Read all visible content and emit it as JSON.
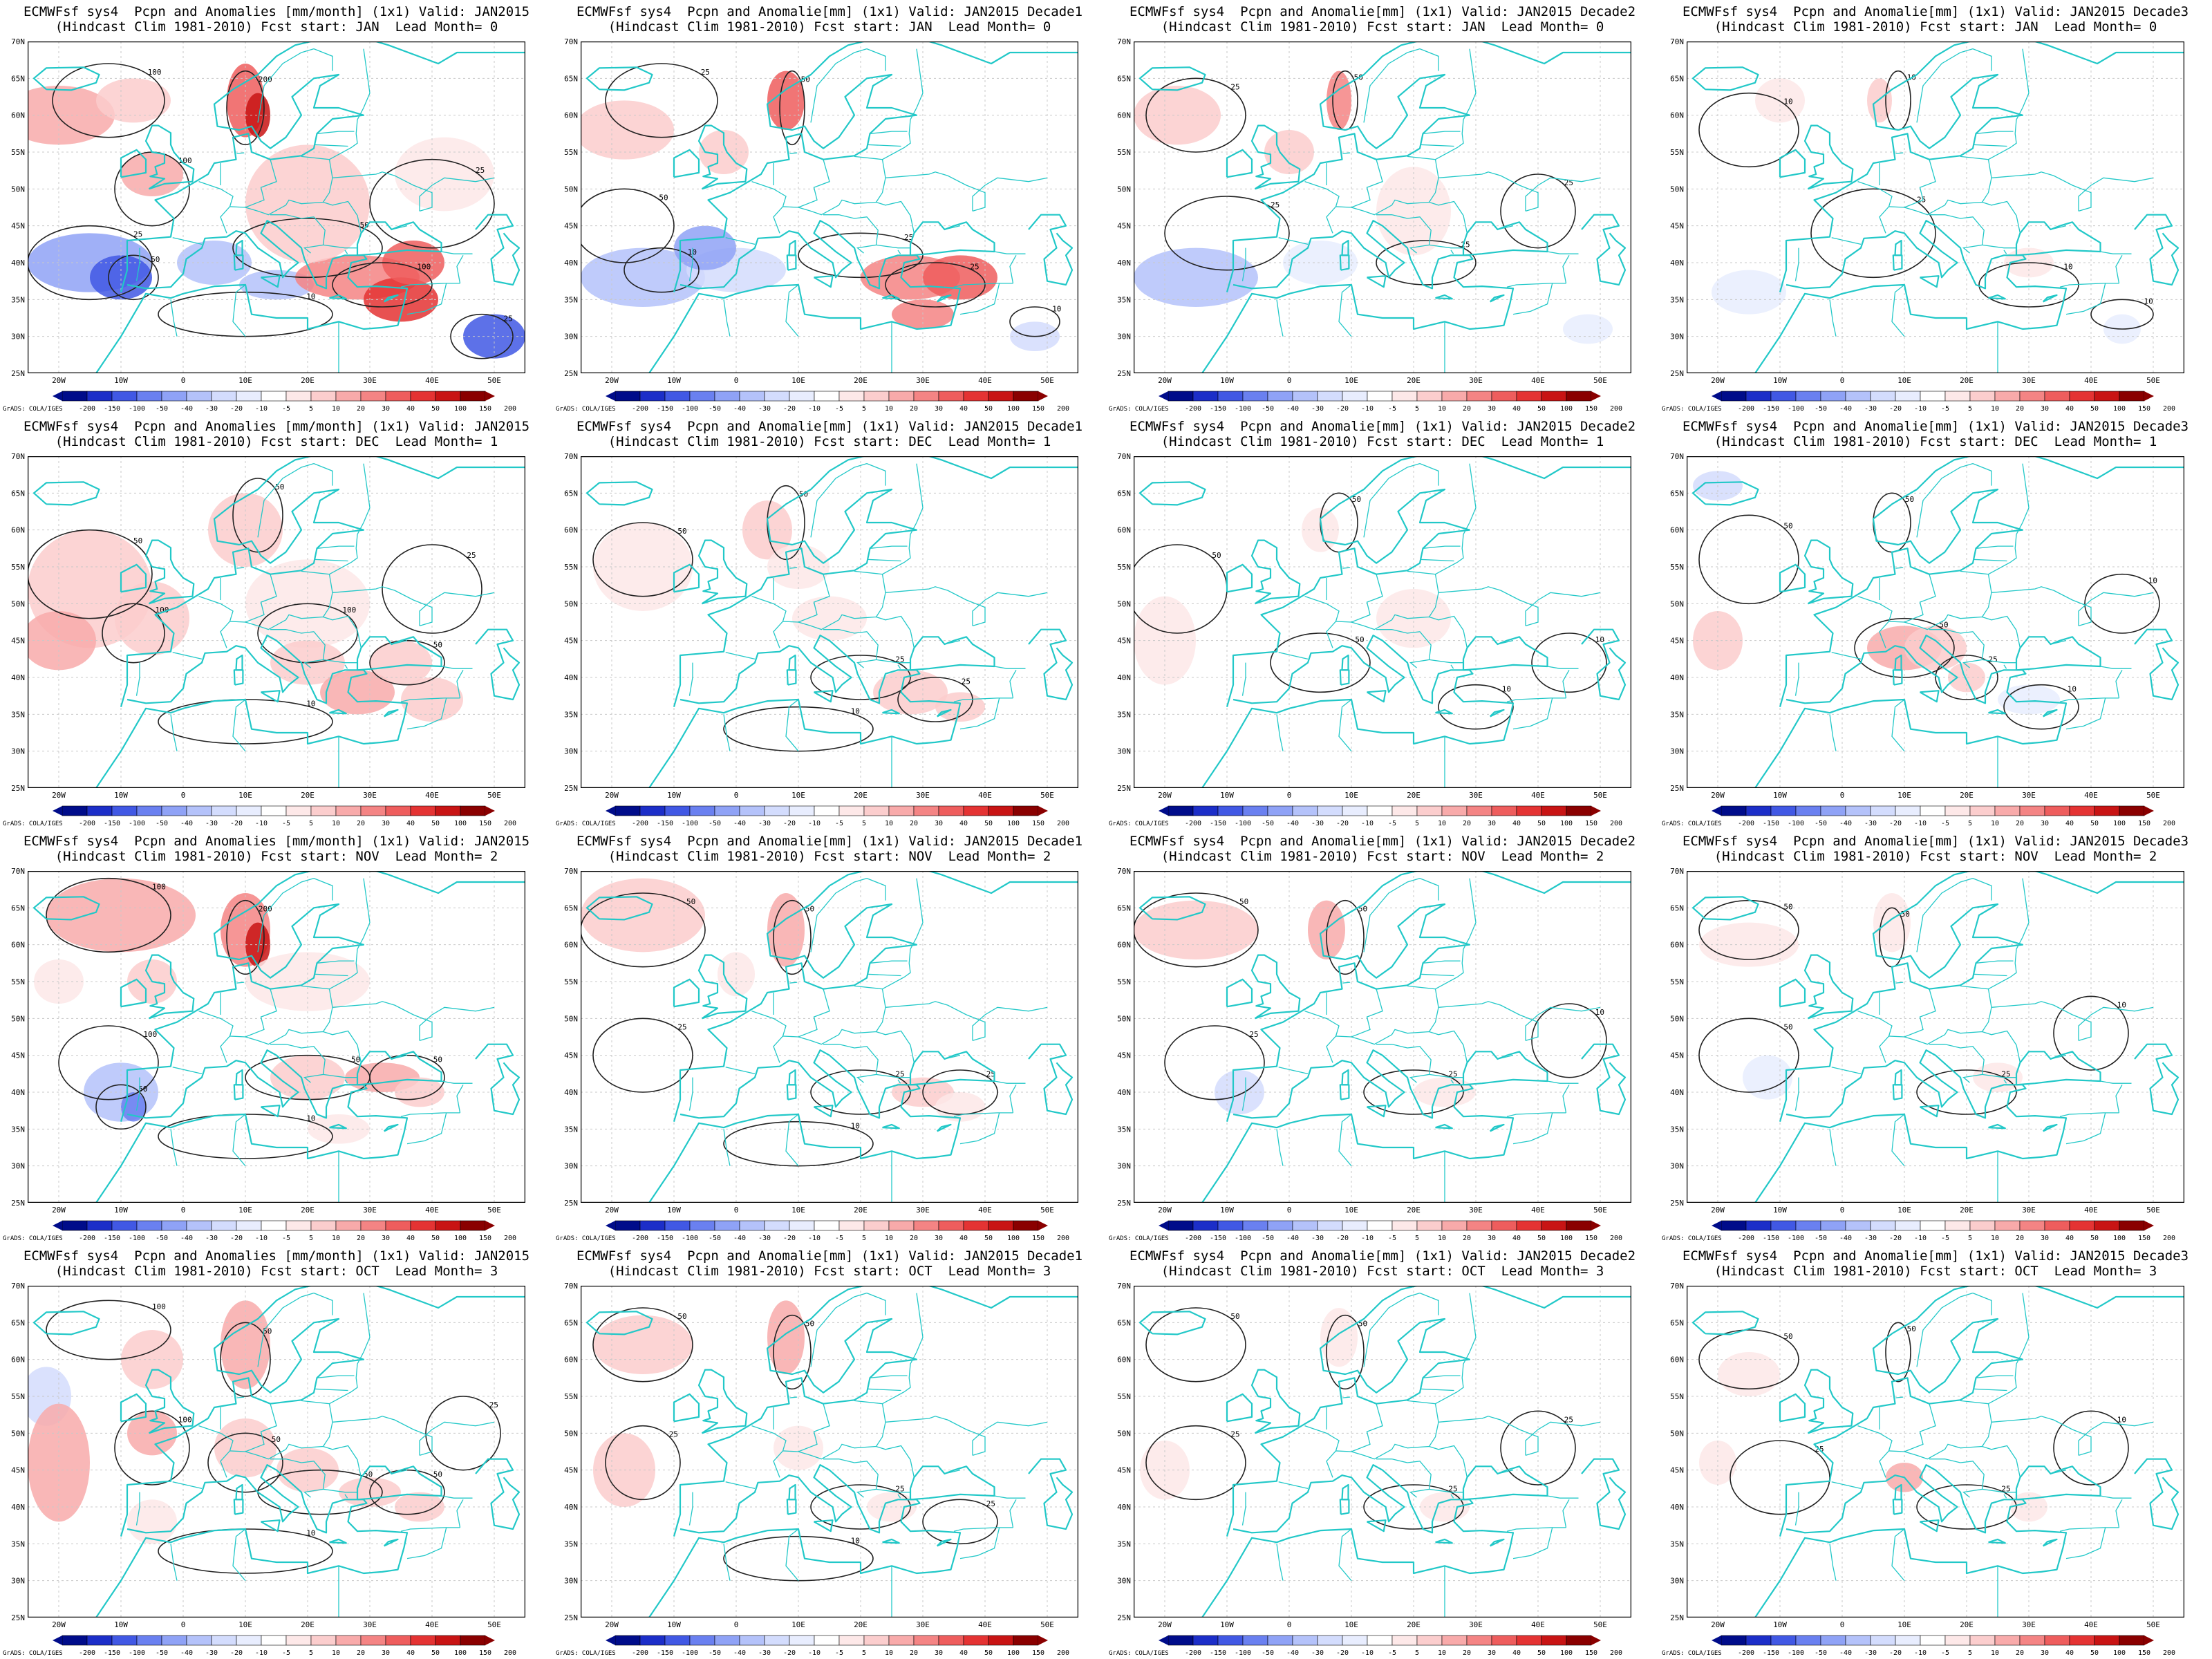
{
  "colors": {
    "coast": "#22c8c8",
    "contour": "#222222",
    "grid": "#c8c8c8",
    "neg": [
      "#000c8a",
      "#1c2ec8",
      "#4158e4",
      "#6a80f0",
      "#8fa2f6",
      "#b4c2fa",
      "#d3dcfd",
      "#e8edfe"
    ],
    "pos": [
      "#fde8e8",
      "#fbcdcd",
      "#f8aaaa",
      "#f48484",
      "#ee5d5d",
      "#e43333",
      "#c81414",
      "#8a0000"
    ]
  },
  "credit": "GrADS: COLA/IGES",
  "colorbar_labels": [
    "-200",
    "-150",
    "-100",
    "-50",
    "-40",
    "-30",
    "-20",
    "-10",
    "-5",
    "5",
    "10",
    "20",
    "30",
    "40",
    "50",
    "100",
    "150",
    "200"
  ],
  "lat_labels": [
    "25N",
    "30N",
    "35N",
    "40N",
    "45N",
    "50N",
    "55N",
    "60N",
    "65N",
    "70N"
  ],
  "lon_labels": [
    "20W",
    "10W",
    "0",
    "10E",
    "20E",
    "30E",
    "40E",
    "50E"
  ],
  "panels": [
    {
      "line1": "ECMWFsf sys4  Pcpn and Anomalies [mm/month] (1x1) Valid: JAN2015",
      "line2": "(Hindcast Clim 1981-2010) Fcst start: JAN  Lead Month= 0"
    },
    {
      "line1": "ECMWFsf sys4  Pcpn and Anomalie[mm] (1x1) Valid: JAN2015 Decade1",
      "line2": "(Hindcast Clim 1981-2010) Fcst start: JAN  Lead Month= 0"
    },
    {
      "line1": "ECMWFsf sys4  Pcpn and Anomalie[mm] (1x1) Valid: JAN2015 Decade2",
      "line2": "(Hindcast Clim 1981-2010) Fcst start: JAN  Lead Month= 0"
    },
    {
      "line1": "ECMWFsf sys4  Pcpn and Anomalie[mm] (1x1) Valid: JAN2015 Decade3",
      "line2": "(Hindcast Clim 1981-2010) Fcst start: JAN  Lead Month= 0"
    },
    {
      "line1": "ECMWFsf sys4  Pcpn and Anomalies [mm/month] (1x1) Valid: JAN2015",
      "line2": "(Hindcast Clim 1981-2010) Fcst start: DEC  Lead Month= 1"
    },
    {
      "line1": "ECMWFsf sys4  Pcpn and Anomalie[mm] (1x1) Valid: JAN2015 Decade1",
      "line2": "(Hindcast Clim 1981-2010) Fcst start: DEC  Lead Month= 1"
    },
    {
      "line1": "ECMWFsf sys4  Pcpn and Anomalie[mm] (1x1) Valid: JAN2015 Decade2",
      "line2": "(Hindcast Clim 1981-2010) Fcst start: DEC  Lead Month= 1"
    },
    {
      "line1": "ECMWFsf sys4  Pcpn and Anomalie[mm] (1x1) Valid: JAN2015 Decade3",
      "line2": "(Hindcast Clim 1981-2010) Fcst start: DEC  Lead Month= 1"
    },
    {
      "line1": "ECMWFsf sys4  Pcpn and Anomalies [mm/month] (1x1) Valid: JAN2015",
      "line2": "(Hindcast Clim 1981-2010) Fcst start: NOV  Lead Month= 2"
    },
    {
      "line1": "ECMWFsf sys4  Pcpn and Anomalie[mm] (1x1) Valid: JAN2015 Decade1",
      "line2": "(Hindcast Clim 1981-2010) Fcst start: NOV  Lead Month= 2"
    },
    {
      "line1": "ECMWFsf sys4  Pcpn and Anomalie[mm] (1x1) Valid: JAN2015 Decade2",
      "line2": "(Hindcast Clim 1981-2010) Fcst start: NOV  Lead Month= 2"
    },
    {
      "line1": "ECMWFsf sys4  Pcpn and Anomalie[mm] (1x1) Valid: JAN2015 Decade3",
      "line2": "(Hindcast Clim 1981-2010) Fcst start: NOV  Lead Month= 2"
    },
    {
      "line1": "ECMWFsf sys4  Pcpn and Anomalies [mm/month] (1x1) Valid: JAN2015",
      "line2": "(Hindcast Clim 1981-2010) Fcst start: OCT  Lead Month= 3"
    },
    {
      "line1": "ECMWFsf sys4  Pcpn and Anomalie[mm] (1x1) Valid: JAN2015 Decade1",
      "line2": "(Hindcast Clim 1981-2010) Fcst start: OCT  Lead Month= 3"
    },
    {
      "line1": "ECMWFsf sys4  Pcpn and Anomalie[mm] (1x1) Valid: JAN2015 Decade2",
      "line2": "(Hindcast Clim 1981-2010) Fcst start: OCT  Lead Month= 3"
    },
    {
      "line1": "ECMWFsf sys4  Pcpn and Anomalie[mm] (1x1) Valid: JAN2015 Decade3",
      "line2": "(Hindcast Clim 1981-2010) Fcst start: OCT  Lead Month= 3"
    }
  ]
}
